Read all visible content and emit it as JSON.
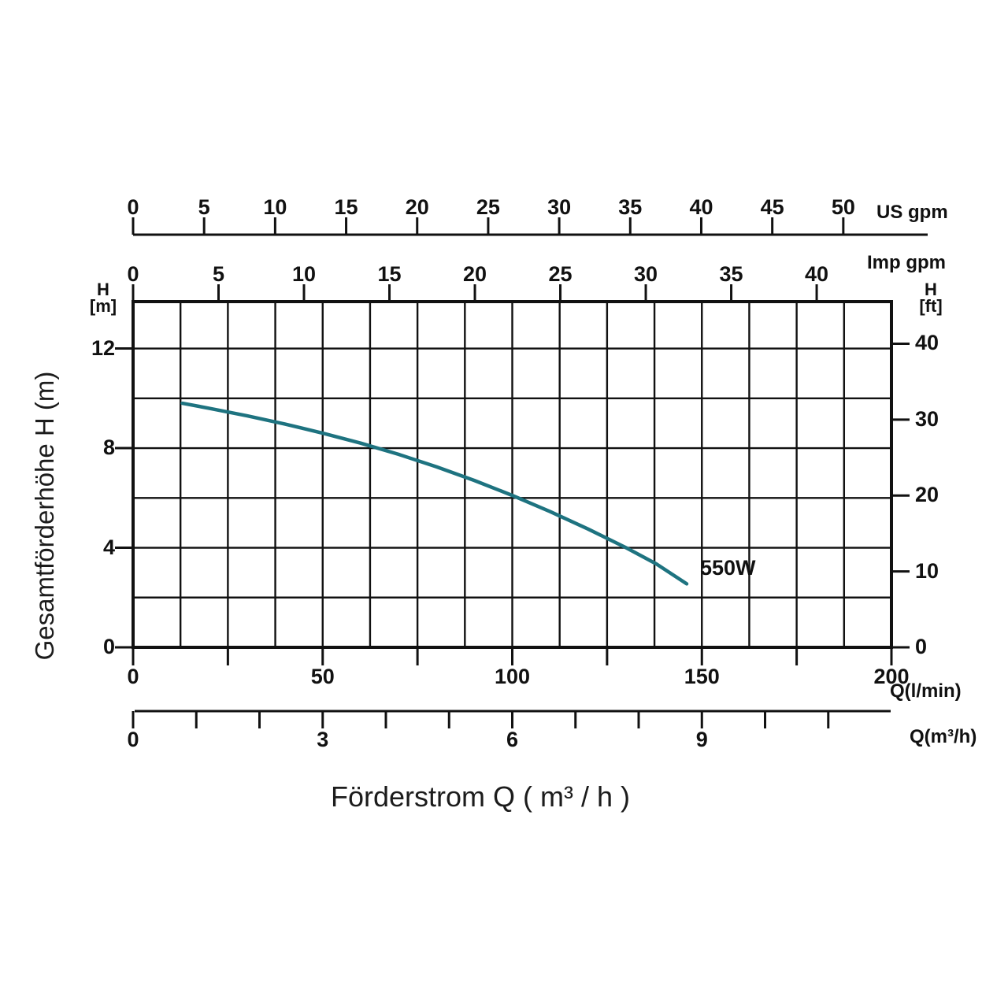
{
  "page": {
    "background": "#ffffff"
  },
  "chart_data": {
    "type": "line",
    "title": "Förderstrom Q ( m³ / h )",
    "ylabel": "Gesamtförderhöhe  H (m)",
    "series": [
      {
        "name": "550W",
        "color": "#1e7380",
        "x_unit": "l/min",
        "y_unit": "m",
        "points": [
          [
            13,
            9.8
          ],
          [
            20,
            9.6
          ],
          [
            30,
            9.3
          ],
          [
            40,
            8.97
          ],
          [
            50,
            8.6
          ],
          [
            60,
            8.2
          ],
          [
            70,
            7.75
          ],
          [
            80,
            7.25
          ],
          [
            90,
            6.7
          ],
          [
            100,
            6.1
          ],
          [
            110,
            5.45
          ],
          [
            120,
            4.75
          ],
          [
            130,
            4.0
          ],
          [
            138,
            3.35
          ],
          [
            146,
            2.55
          ]
        ]
      }
    ],
    "axes": {
      "q_lmin": {
        "unit": "Q(l/min)",
        "range": [
          0,
          200
        ],
        "labeled_ticks": [
          0,
          50,
          100,
          150,
          200
        ],
        "minor_step": 25
      },
      "q_m3h": {
        "unit": "Q(m³/h)",
        "lmin_per_unit": 16.667,
        "ticks": [
          0,
          1,
          2,
          3,
          4,
          5,
          6,
          7,
          8,
          9,
          10,
          11
        ],
        "labeled_ticks": [
          0,
          3,
          6,
          9
        ]
      },
      "us_gpm": {
        "unit": "US gpm",
        "lmin_per_unit": 3.746,
        "ticks": [
          0,
          5,
          10,
          15,
          20,
          25,
          30,
          35,
          40,
          45,
          50
        ]
      },
      "imp_gpm": {
        "unit": "Imp gpm",
        "lmin_per_unit": 4.507,
        "ticks": [
          0,
          5,
          10,
          15,
          20,
          25,
          30,
          35,
          40
        ]
      },
      "h_m": {
        "header": [
          "H",
          "[m]"
        ],
        "labeled_ticks": [
          0,
          4,
          8,
          12
        ],
        "grid_step_m": 2,
        "max_grid_m": 12
      },
      "h_ft": {
        "header": [
          "H",
          "[ft]"
        ],
        "m_per_unit": 0.3048,
        "ticks": [
          0,
          10,
          20,
          30,
          40
        ]
      }
    },
    "grid": {
      "vertical_divisions": 16,
      "horizontal_step_m": 2,
      "on": true
    },
    "colors": {
      "line": "#111111",
      "curve": "#1e7380",
      "text": "#111111"
    }
  }
}
